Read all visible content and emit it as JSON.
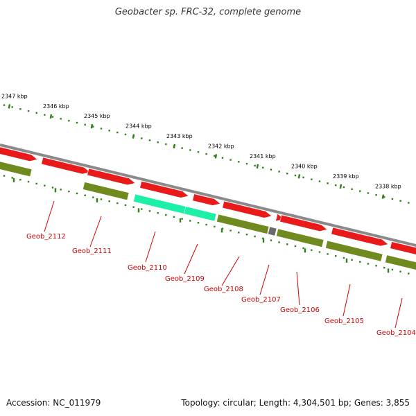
{
  "title": "Geobacter sp. FRC-32, complete genome",
  "footer": {
    "accession": "Accession: NC_011979",
    "summary": "Topology: circular; Length: 4,304,501 bp; Genes: 3,855"
  },
  "colors": {
    "backbone": "#8a8a8a",
    "forward_gene": "#e81a1a",
    "reverse_gene": "#6f8a1e",
    "highlight_gene": "#1cf0a6",
    "rna_gene": "#6a6a6a",
    "ticks": "#2f7f1a",
    "label": "#cc0000"
  },
  "kbp_ticks": [
    "2347 kbp",
    "2346 kbp",
    "2345 kbp",
    "2344 kbp",
    "2343 kbp",
    "2342 kbp",
    "2341 kbp",
    "2340 kbp",
    "2339 kbp",
    "2338 kbp"
  ],
  "genes": [
    {
      "label": "Geob_2112",
      "strand": "reverse",
      "type": "cds"
    },
    {
      "label": "Geob_2111",
      "strand": "reverse",
      "type": "cds"
    },
    {
      "label": "Geob_2110",
      "strand": "reverse",
      "type": "highlight"
    },
    {
      "label": "Geob_2109",
      "strand": "reverse",
      "type": "highlight"
    },
    {
      "label": "Geob_2108",
      "strand": "reverse",
      "type": "cds"
    },
    {
      "label": "Geob_2107",
      "strand": "reverse",
      "type": "rna"
    },
    {
      "label": "Geob_2106",
      "strand": "reverse",
      "type": "cds"
    },
    {
      "label": "Geob_2105",
      "strand": "reverse",
      "type": "cds"
    },
    {
      "label": "Geob_2104",
      "strand": "reverse",
      "type": "cds"
    }
  ]
}
